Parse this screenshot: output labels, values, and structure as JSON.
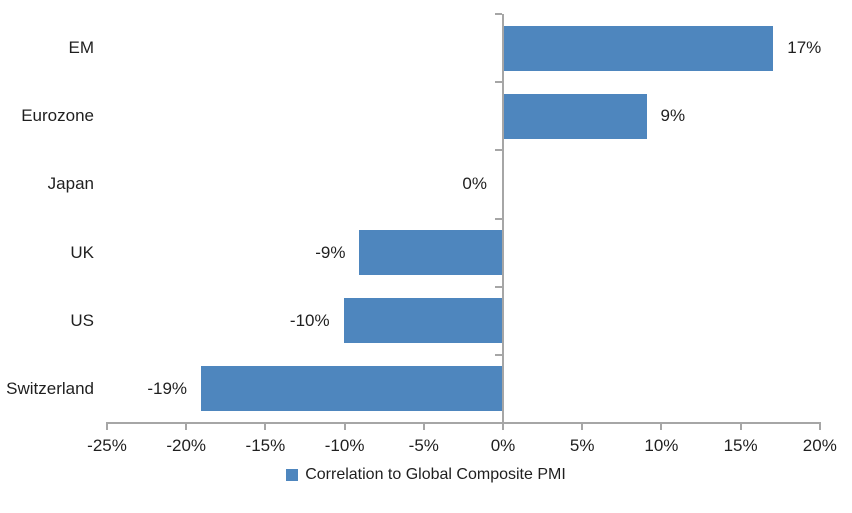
{
  "chart_data": {
    "type": "bar",
    "orientation": "horizontal",
    "title": "",
    "categories": [
      "EM",
      "Eurozone",
      "Japan",
      "UK",
      "US",
      "Switzerland"
    ],
    "values": [
      17,
      9,
      0,
      -9,
      -10,
      -19
    ],
    "data_labels": [
      "17%",
      "9%",
      "0%",
      "-9%",
      "-10%",
      "-19%"
    ],
    "series_name": "Correlation to Global Composite PMI",
    "x_ticks": [
      -25,
      -20,
      -15,
      -10,
      -5,
      0,
      5,
      10,
      15,
      20
    ],
    "x_tick_labels": [
      "-25%",
      "-20%",
      "-15%",
      "-10%",
      "-5%",
      "0%",
      "5%",
      "10%",
      "15%",
      "20%"
    ],
    "xlim": [
      -25,
      20
    ],
    "grid": false,
    "legend_position": "bottom",
    "colors": {
      "bar": "#4E86BE",
      "axis": "#A6A6A6",
      "text": "#1F1F1F",
      "background": "#FFFFFF"
    }
  }
}
